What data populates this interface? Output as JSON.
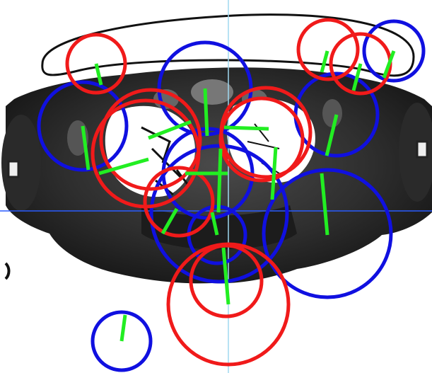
{
  "viewer": {
    "background": "#ffffff",
    "colors": {
      "blue_marker": "#1010e0",
      "red_marker": "#f01a1a",
      "orientation_line": "#22ee22",
      "crosshair_horizontal": "#2a5cff",
      "crosshair_vertical": "#9fd8f0",
      "tissue_dark": "#111111",
      "tissue_mid": "#3a3a3a",
      "lung_air": "#ffffff"
    },
    "marker_count": {
      "blue": 9,
      "red": 9
    }
  }
}
